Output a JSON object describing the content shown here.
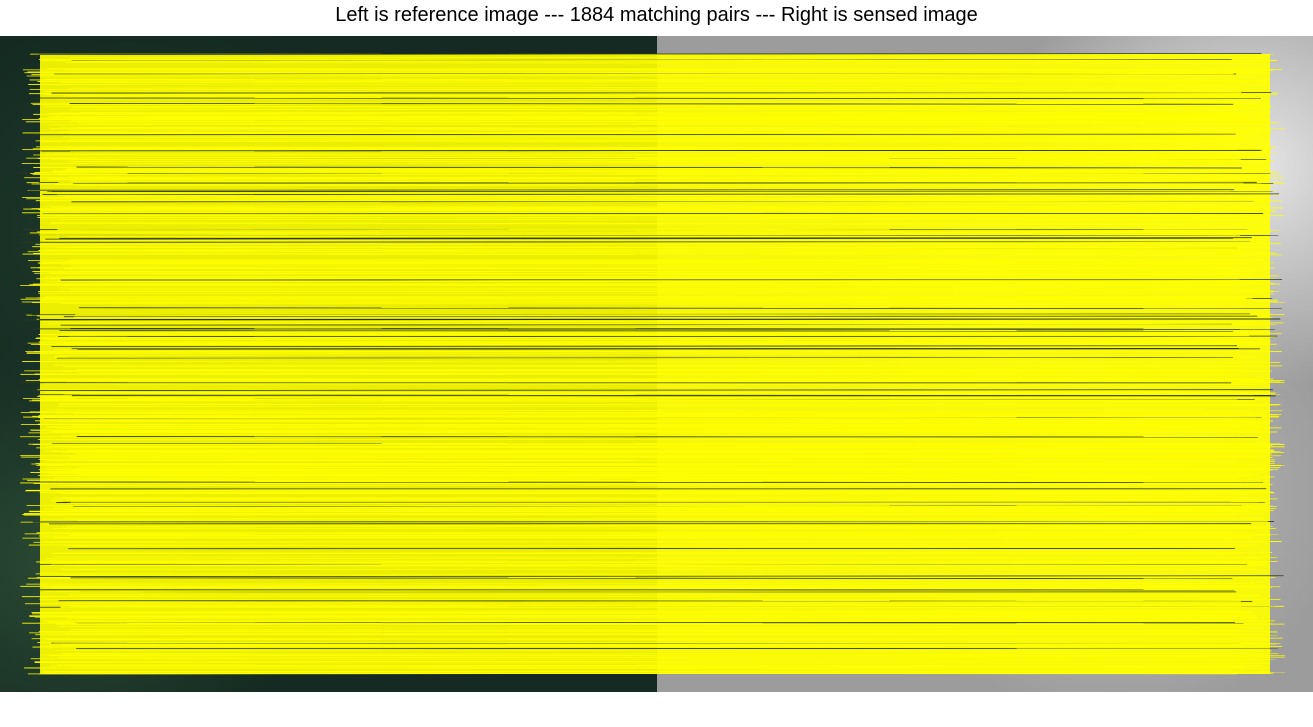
{
  "title": "Left is reference image --- 1884 matching pairs --- Right is sensed image",
  "panels": {
    "left_label": "reference image",
    "right_label": "sensed image"
  },
  "matches": {
    "count": 1884,
    "line_color": "#ffff00"
  }
}
